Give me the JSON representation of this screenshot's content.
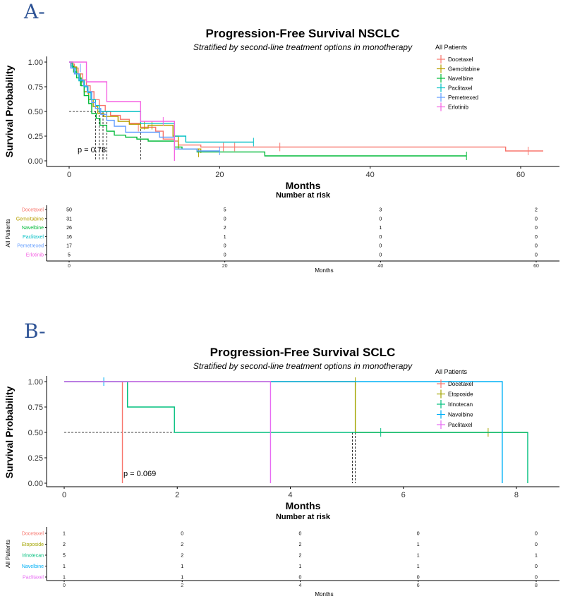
{
  "chart_data": [
    {
      "type": "line",
      "panel_label": "A-",
      "title": "Progression-Free Survival NSCLC",
      "subtitle": "Stratified by second-line treatment options in monotherapy",
      "xlabel": "Months",
      "ylabel": "Survival Probability",
      "xlim": [
        0,
        63
      ],
      "ylim": [
        0,
        1
      ],
      "x_ticks": [
        0,
        20,
        40,
        60
      ],
      "y_ticks": [
        "0.00",
        "0.25",
        "0.50",
        "0.75",
        "1.00"
      ],
      "pvalue": "p = 0.78",
      "median_line": {
        "y": 0.5,
        "x_ends": [
          3.5,
          4.0,
          4.5,
          5.0,
          9.5
        ]
      },
      "legend_title": "All Patients",
      "risk_table": {
        "title": "Number at risk",
        "ylabel": "All Patients",
        "xlabel": "Months",
        "times": [
          0,
          20,
          40,
          60
        ],
        "tick_labels": [
          "0",
          "20",
          "40",
          "60"
        ],
        "rows": [
          {
            "name": "Docetaxel",
            "counts": [
              "50",
              "5",
              "3",
              "2"
            ]
          },
          {
            "name": "Gemcitabine",
            "counts": [
              "31",
              "0",
              "0",
              "0"
            ]
          },
          {
            "name": "Navelbine",
            "counts": [
              "26",
              "2",
              "1",
              "0"
            ]
          },
          {
            "name": "Paclitaxel",
            "counts": [
              "16",
              "1",
              "0",
              "0"
            ]
          },
          {
            "name": "Pemetrexed",
            "counts": [
              "17",
              "0",
              "0",
              "0"
            ]
          },
          {
            "name": "Erlotinib",
            "counts": [
              "5",
              "0",
              "0",
              "0"
            ]
          }
        ]
      },
      "series": [
        {
          "name": "Docetaxel",
          "color": "#F8766D",
          "steps": [
            [
              0,
              1.0
            ],
            [
              0.3,
              0.98
            ],
            [
              0.7,
              0.94
            ],
            [
              1.2,
              0.88
            ],
            [
              1.8,
              0.82
            ],
            [
              2.3,
              0.76
            ],
            [
              2.8,
              0.7
            ],
            [
              3.3,
              0.62
            ],
            [
              4.0,
              0.56
            ],
            [
              4.8,
              0.5
            ],
            [
              5.5,
              0.46
            ],
            [
              6.8,
              0.42
            ],
            [
              8.0,
              0.38
            ],
            [
              9.5,
              0.34
            ],
            [
              11.5,
              0.3
            ],
            [
              12.5,
              0.22
            ],
            [
              14.0,
              0.2
            ],
            [
              14.5,
              0.16
            ],
            [
              17.5,
              0.14
            ],
            [
              22.0,
              0.14
            ],
            [
              58.0,
              0.1
            ],
            [
              63.0,
              0.1
            ]
          ],
          "end": 63.0,
          "censors": [
            [
              2.5,
              0.72
            ],
            [
              9.2,
              0.34
            ],
            [
              20.5,
              0.14
            ],
            [
              22.0,
              0.14
            ],
            [
              28.0,
              0.14
            ],
            [
              61.0,
              0.1
            ]
          ]
        },
        {
          "name": "Gemcitabine",
          "color": "#B79F00",
          "steps": [
            [
              0,
              1.0
            ],
            [
              0.5,
              0.95
            ],
            [
              1.0,
              0.88
            ],
            [
              1.5,
              0.8
            ],
            [
              2.0,
              0.7
            ],
            [
              2.6,
              0.62
            ],
            [
              3.2,
              0.55
            ],
            [
              3.8,
              0.48
            ],
            [
              4.6,
              0.45
            ],
            [
              6.5,
              0.4
            ],
            [
              8.0,
              0.37
            ],
            [
              9.5,
              0.33
            ],
            [
              10.5,
              0.36
            ],
            [
              13.8,
              0.25
            ],
            [
              14.5,
              0.12
            ],
            [
              17.5,
              0.08
            ]
          ],
          "end": 17.5,
          "censors": [
            [
              10.0,
              0.36
            ],
            [
              11.0,
              0.36
            ],
            [
              17.2,
              0.08
            ]
          ]
        },
        {
          "name": "Navelbine",
          "color": "#00BA38",
          "steps": [
            [
              0,
              1.0
            ],
            [
              0.2,
              0.96
            ],
            [
              0.6,
              0.9
            ],
            [
              1.0,
              0.84
            ],
            [
              1.6,
              0.76
            ],
            [
              2.0,
              0.66
            ],
            [
              2.6,
              0.58
            ],
            [
              3.0,
              0.48
            ],
            [
              3.6,
              0.43
            ],
            [
              4.1,
              0.36
            ],
            [
              5.0,
              0.3
            ],
            [
              6.0,
              0.26
            ],
            [
              7.5,
              0.24
            ],
            [
              9.0,
              0.22
            ],
            [
              10.5,
              0.2
            ],
            [
              14.0,
              0.14
            ],
            [
              15.0,
              0.12
            ],
            [
              17.0,
              0.09
            ],
            [
              26.0,
              0.05
            ]
          ],
          "end": 52.8,
          "censors": [
            [
              1.5,
              0.8
            ],
            [
              52.8,
              0.05
            ]
          ]
        },
        {
          "name": "Paclitaxel",
          "color": "#00BFC4",
          "steps": [
            [
              0,
              1.0
            ],
            [
              0.4,
              0.94
            ],
            [
              0.9,
              0.88
            ],
            [
              1.3,
              0.81
            ],
            [
              2.0,
              0.75
            ],
            [
              2.5,
              0.69
            ],
            [
              2.9,
              0.62
            ],
            [
              3.5,
              0.56
            ],
            [
              4.0,
              0.5
            ],
            [
              9.5,
              0.38
            ],
            [
              14.0,
              0.25
            ],
            [
              15.5,
              0.19
            ],
            [
              24.5,
              0.19
            ]
          ],
          "end": 24.5,
          "censors": [
            [
              24.5,
              0.19
            ]
          ]
        },
        {
          "name": "Pemetrexed",
          "color": "#619CFF",
          "steps": [
            [
              0,
              1.0
            ],
            [
              0.2,
              0.94
            ],
            [
              0.7,
              0.88
            ],
            [
              1.4,
              0.82
            ],
            [
              1.9,
              0.76
            ],
            [
              2.4,
              0.7
            ],
            [
              3.0,
              0.59
            ],
            [
              3.5,
              0.53
            ],
            [
              4.2,
              0.47
            ],
            [
              5.0,
              0.41
            ],
            [
              6.0,
              0.35
            ],
            [
              7.5,
              0.29
            ],
            [
              12.0,
              0.24
            ],
            [
              14.0,
              0.12
            ],
            [
              17.0,
              0.1
            ],
            [
              20.0,
              0.1
            ]
          ],
          "end": 20.0,
          "censors": [
            [
              1.5,
              0.94
            ],
            [
              20.0,
              0.1
            ]
          ]
        },
        {
          "name": "Erlotinib",
          "color": "#F564E3",
          "steps": [
            [
              0,
              1.0
            ],
            [
              2.3,
              0.8
            ],
            [
              5.0,
              0.6
            ],
            [
              9.5,
              0.4
            ],
            [
              14.0,
              0.0
            ]
          ],
          "end": 14.0,
          "censors": [
            [
              12.5,
              0.4
            ]
          ]
        }
      ]
    },
    {
      "type": "line",
      "panel_label": "B-",
      "title": "Progression-Free Survival SCLC",
      "subtitle": "Stratified by second-line treatment options in monotherapy",
      "xlabel": "Months",
      "ylabel": "Survival Probability",
      "xlim": [
        0,
        8.35
      ],
      "ylim": [
        0,
        1
      ],
      "x_ticks": [
        0,
        2,
        4,
        6,
        8
      ],
      "y_ticks": [
        "0.00",
        "0.25",
        "0.50",
        "0.75",
        "1.00"
      ],
      "pvalue": "p = 0.069",
      "median_line": {
        "y": 0.5,
        "x_ends": [
          1.03,
          3.65,
          5.1,
          5.15,
          7.75
        ]
      },
      "legend_title": "All Patients",
      "risk_table": {
        "title": "Number at risk",
        "ylabel": "All Patients",
        "xlabel": "Months",
        "times": [
          0,
          2,
          4,
          6,
          8
        ],
        "tick_labels": [
          "0",
          "2",
          "4",
          "6",
          "8"
        ],
        "rows": [
          {
            "name": "Docetaxel",
            "counts": [
              "1",
              "0",
              "0",
              "0",
              "0"
            ]
          },
          {
            "name": "Etoposide",
            "counts": [
              "2",
              "2",
              "2",
              "1",
              "0"
            ]
          },
          {
            "name": "Irinotecan",
            "counts": [
              "5",
              "2",
              "2",
              "1",
              "1"
            ]
          },
          {
            "name": "Navelbine",
            "counts": [
              "1",
              "1",
              "1",
              "1",
              "0"
            ]
          },
          {
            "name": "Paclitaxel",
            "counts": [
              "1",
              "1",
              "0",
              "0",
              "0"
            ]
          }
        ]
      },
      "series": [
        {
          "name": "Docetaxel",
          "color": "#F8766D",
          "steps": [
            [
              0,
              1.0
            ],
            [
              1.03,
              0.0
            ]
          ],
          "end": 1.03,
          "censors": []
        },
        {
          "name": "Etoposide",
          "color": "#A3A500",
          "steps": [
            [
              0,
              1.0
            ],
            [
              5.15,
              0.5
            ],
            [
              8.2,
              0.5
            ]
          ],
          "end": 8.2,
          "censors": [
            [
              5.15,
              1.0
            ],
            [
              7.5,
              0.5
            ]
          ]
        },
        {
          "name": "Irinotecan",
          "color": "#00BF7D",
          "steps": [
            [
              0,
              1.0
            ],
            [
              1.12,
              0.75
            ],
            [
              1.95,
              0.5
            ],
            [
              8.2,
              0.0
            ]
          ],
          "end": 8.2,
          "censors": [
            [
              5.6,
              0.5
            ]
          ]
        },
        {
          "name": "Navelbine",
          "color": "#00B0F6",
          "steps": [
            [
              0,
              1.0
            ],
            [
              7.75,
              0.0
            ]
          ],
          "end": 7.75,
          "censors": [
            [
              0.7,
              1.0
            ]
          ]
        },
        {
          "name": "Paclitaxel",
          "color": "#E76BF3",
          "steps": [
            [
              0,
              1.0
            ],
            [
              3.65,
              0.0
            ]
          ],
          "end": 3.65,
          "censors": []
        }
      ]
    }
  ]
}
